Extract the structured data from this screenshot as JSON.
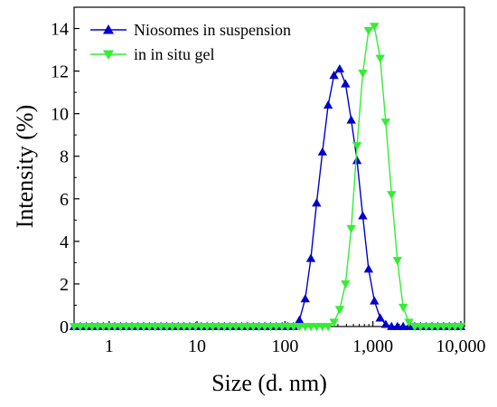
{
  "chart_data": {
    "type": "line",
    "title": "",
    "xlabel": "Size (d. nm)",
    "ylabel": "Intensity (%)",
    "x_scale": "log",
    "xlim": [
      0.4,
      11000
    ],
    "ylim": [
      0,
      15
    ],
    "x_ticks": [
      1,
      10,
      100,
      1000,
      10000
    ],
    "x_tick_labels": [
      "1",
      "10",
      "100",
      "1,000",
      "10,000"
    ],
    "y_ticks": [
      0,
      2,
      4,
      6,
      8,
      10,
      12,
      14
    ],
    "y_tick_labels": [
      "0",
      "2",
      "4",
      "6",
      "8",
      "10",
      "12",
      "14"
    ],
    "grid": false,
    "legend_position": "top-left",
    "x": [
      0.4,
      0.47,
      0.55,
      0.64,
      0.74,
      0.86,
      1.0,
      1.16,
      1.35,
      1.57,
      1.82,
      2.12,
      2.47,
      2.87,
      3.34,
      3.88,
      4.52,
      5.25,
      6.11,
      7.11,
      8.26,
      9.61,
      11.2,
      13.0,
      15.1,
      17.6,
      20.5,
      23.8,
      27.7,
      32.2,
      37.5,
      43.6,
      50.7,
      58.9,
      68.5,
      79.7,
      92.7,
      108,
      125,
      146,
      170,
      197,
      229,
      267,
      310,
      361,
      419,
      488,
      567,
      660,
      767,
      893,
      1040,
      1210,
      1400,
      1630,
      1900,
      2210,
      2570,
      2990,
      3480,
      4040,
      4700,
      5470,
      6360,
      7400,
      8600,
      10000
    ],
    "series": [
      {
        "name": "Niosomes in suspension",
        "color": "#0000cc",
        "marker": "triangle-up",
        "values": [
          0,
          0,
          0,
          0,
          0,
          0,
          0,
          0,
          0,
          0,
          0,
          0,
          0,
          0,
          0,
          0,
          0,
          0,
          0,
          0,
          0,
          0,
          0,
          0,
          0,
          0,
          0,
          0,
          0,
          0,
          0,
          0,
          0,
          0,
          0,
          0,
          0,
          0,
          0,
          0.3,
          1.3,
          3.2,
          5.8,
          8.2,
          10.4,
          11.8,
          12.1,
          11.4,
          9.7,
          7.8,
          5.2,
          2.7,
          1.2,
          0.4,
          0.1,
          0,
          0,
          0,
          0,
          0,
          0,
          0,
          0,
          0,
          0,
          0,
          0,
          0
        ]
      },
      {
        "name": "in in situ gel",
        "color": "#33ee33",
        "marker": "triangle-down",
        "values": [
          0,
          0,
          0,
          0,
          0,
          0,
          0,
          0,
          0,
          0,
          0,
          0,
          0,
          0,
          0,
          0,
          0,
          0,
          0,
          0,
          0,
          0,
          0,
          0,
          0,
          0,
          0,
          0,
          0,
          0,
          0,
          0,
          0,
          0,
          0,
          0,
          0,
          0,
          0,
          0,
          0,
          0,
          0,
          0,
          0,
          0.2,
          0.8,
          2.0,
          4.6,
          8.5,
          11.9,
          13.9,
          14.1,
          12.6,
          9.6,
          6.2,
          3.1,
          0.9,
          0.2,
          0,
          0,
          0,
          0,
          0,
          0,
          0,
          0,
          0
        ]
      }
    ]
  }
}
